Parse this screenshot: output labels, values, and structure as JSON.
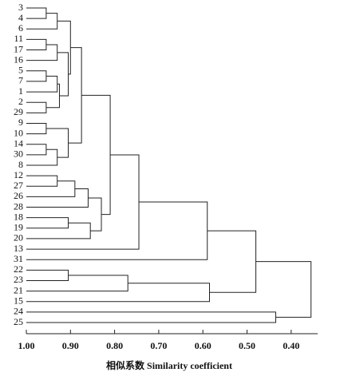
{
  "chart_data": {
    "type": "dendrogram",
    "xlabel": "相似系数 Similarity coefficient",
    "leaves": [
      "3",
      "4",
      "6",
      "11",
      "17",
      "16",
      "5",
      "7",
      "1",
      "2",
      "29",
      "9",
      "10",
      "14",
      "30",
      "8",
      "12",
      "27",
      "26",
      "28",
      "18",
      "19",
      "20",
      "13",
      "31",
      "22",
      "23",
      "21",
      "15",
      "24",
      "25"
    ],
    "merges": [
      {
        "a": 0,
        "b": 1,
        "height": 0.955
      },
      {
        "a": 31,
        "b": 2,
        "height": 0.93
      },
      {
        "a": 3,
        "b": 4,
        "height": 0.955
      },
      {
        "a": 33,
        "b": 5,
        "height": 0.93
      },
      {
        "a": 6,
        "b": 7,
        "height": 0.955
      },
      {
        "a": 35,
        "b": 8,
        "height": 0.93
      },
      {
        "a": 9,
        "b": 10,
        "height": 0.955
      },
      {
        "a": 36,
        "b": 37,
        "height": 0.925
      },
      {
        "a": 34,
        "b": 38,
        "height": 0.905
      },
      {
        "a": 32,
        "b": 39,
        "height": 0.9
      },
      {
        "a": 11,
        "b": 12,
        "height": 0.955
      },
      {
        "a": 13,
        "b": 14,
        "height": 0.955
      },
      {
        "a": 42,
        "b": 15,
        "height": 0.93
      },
      {
        "a": 41,
        "b": 43,
        "height": 0.905
      },
      {
        "a": 40,
        "b": 44,
        "height": 0.875
      },
      {
        "a": 16,
        "b": 17,
        "height": 0.93
      },
      {
        "a": 46,
        "b": 18,
        "height": 0.89
      },
      {
        "a": 47,
        "b": 19,
        "height": 0.86
      },
      {
        "a": 20,
        "b": 21,
        "height": 0.905
      },
      {
        "a": 49,
        "b": 22,
        "height": 0.855
      },
      {
        "a": 48,
        "b": 50,
        "height": 0.83
      },
      {
        "a": 45,
        "b": 51,
        "height": 0.81
      },
      {
        "a": 52,
        "b": 23,
        "height": 0.745
      },
      {
        "a": 53,
        "b": 24,
        "height": 0.59
      },
      {
        "a": 25,
        "b": 26,
        "height": 0.905
      },
      {
        "a": 55,
        "b": 27,
        "height": 0.77
      },
      {
        "a": 56,
        "b": 28,
        "height": 0.585
      },
      {
        "a": 54,
        "b": 57,
        "height": 0.48
      },
      {
        "a": 29,
        "b": 30,
        "height": 0.435
      },
      {
        "a": 58,
        "b": 59,
        "height": 0.355
      }
    ],
    "xlim": [
      1.0,
      0.34
    ],
    "xticks": [
      {
        "value": 1.0,
        "label": "1.00"
      },
      {
        "value": 0.9,
        "label": "0.90"
      },
      {
        "value": 0.8,
        "label": "0.80"
      },
      {
        "value": 0.7,
        "label": "0.70"
      },
      {
        "value": 0.6,
        "label": "0.60"
      },
      {
        "value": 0.5,
        "label": "0.50"
      },
      {
        "value": 0.4,
        "label": "0.40"
      }
    ]
  }
}
